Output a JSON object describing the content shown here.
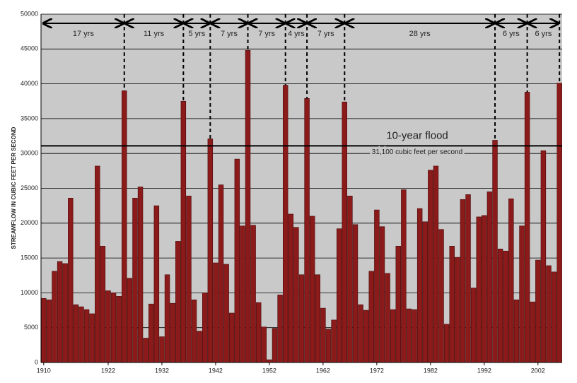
{
  "chart_data": {
    "type": "bar",
    "y_label": "STREAMFLOW IN CUBIC FEET PER SECOND",
    "color": "#8b1a1a",
    "x": [
      1910,
      1911,
      1912,
      1913,
      1914,
      1915,
      1916,
      1917,
      1918,
      1919,
      1920,
      1921,
      1922,
      1923,
      1924,
      1925,
      1926,
      1927,
      1928,
      1929,
      1930,
      1931,
      1932,
      1933,
      1934,
      1935,
      1936,
      1937,
      1938,
      1939,
      1940,
      1941,
      1942,
      1943,
      1944,
      1945,
      1946,
      1947,
      1948,
      1949,
      1950,
      1951,
      1952,
      1953,
      1954,
      1955,
      1956,
      1957,
      1958,
      1959,
      1960,
      1961,
      1962,
      1963,
      1964,
      1965,
      1966,
      1967,
      1968,
      1969,
      1970,
      1971,
      1972,
      1973,
      1974,
      1975,
      1976,
      1977,
      1978,
      1979,
      1980,
      1981,
      1982,
      1983,
      1984,
      1985,
      1986,
      1987,
      1988,
      1989,
      1990,
      1991,
      1992,
      1993,
      1994,
      1995,
      1996,
      1997,
      1998,
      1999,
      2000,
      2001,
      2002,
      2003,
      2004,
      2005,
      2006
    ],
    "values": [
      9200,
      9000,
      13100,
      14500,
      14200,
      23600,
      8300,
      8000,
      7600,
      7000,
      28200,
      16700,
      10300,
      10000,
      9500,
      39000,
      12100,
      23600,
      25200,
      3500,
      8400,
      22500,
      3700,
      12600,
      8500,
      17400,
      37500,
      23900,
      9000,
      4500,
      10000,
      32100,
      14300,
      25500,
      14100,
      7100,
      29200,
      19600,
      44800,
      19700,
      8600,
      5100,
      400,
      4900,
      9700,
      39800,
      21300,
      19400,
      12600,
      37900,
      21000,
      12600,
      7800,
      4800,
      6100,
      19200,
      37400,
      23900,
      19800,
      8300,
      7500,
      13100,
      21900,
      19500,
      12800,
      7600,
      16700,
      24800,
      7700,
      7600,
      22100,
      20200,
      27600,
      28200,
      19100,
      5500,
      16700,
      15100,
      23400,
      24100,
      10700,
      20900,
      21100,
      24500,
      31900,
      16300,
      16000,
      23500,
      9000,
      19600,
      38800,
      8700,
      14700,
      30400,
      13900,
      13000,
      40100
    ],
    "xlim": [
      1909.5,
      2006.5
    ],
    "xticks": [
      1910,
      1922,
      1932,
      1942,
      1952,
      1962,
      1972,
      1982,
      1992,
      2002
    ],
    "ylim": [
      0,
      50000
    ],
    "yticks": [
      0,
      5000,
      10000,
      15000,
      20000,
      25000,
      30000,
      35000,
      40000,
      45000,
      50000
    ],
    "grid": true,
    "reference_line": {
      "value": 31100,
      "label": "10-year flood",
      "sublabel": "31,100 cubic feet per second"
    },
    "flood_years": [
      1925,
      1936,
      1941,
      1948,
      1955,
      1959,
      1966,
      1994,
      2000,
      2006
    ],
    "period_labels": [
      "17 yrs",
      "11 yrs",
      "5 yrs",
      "7 yrs",
      "7 yrs",
      "4 yrs",
      "7 yrs",
      "28 yrs",
      "6 yrs",
      "6 yrs"
    ]
  }
}
